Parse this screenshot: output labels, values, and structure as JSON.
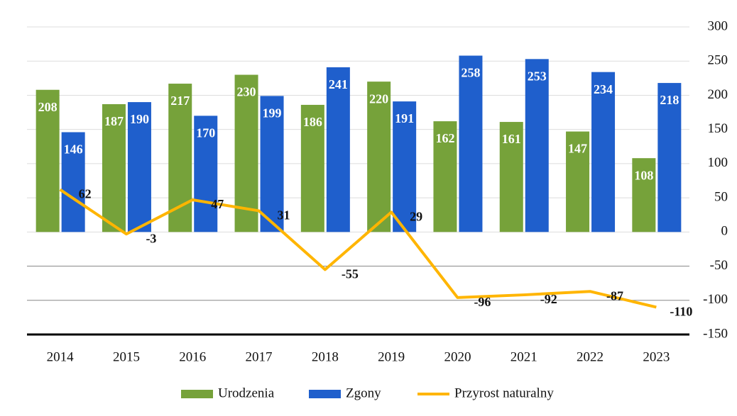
{
  "chart_data": {
    "type": "bar_line",
    "categories": [
      "2014",
      "2015",
      "2016",
      "2017",
      "2018",
      "2019",
      "2020",
      "2021",
      "2022",
      "2023"
    ],
    "series": [
      {
        "name": "Urodzenia",
        "color": "#76a23a",
        "type": "bar",
        "values": [
          208,
          187,
          217,
          230,
          186,
          220,
          162,
          161,
          147,
          108
        ]
      },
      {
        "name": "Zgony",
        "color": "#1f5fcc",
        "type": "bar",
        "values": [
          146,
          190,
          170,
          199,
          241,
          191,
          258,
          253,
          234,
          218
        ]
      },
      {
        "name": "Przyrost naturalny",
        "color": "#ffb500",
        "type": "line",
        "values": [
          62,
          -3,
          47,
          31,
          -55,
          29,
          -96,
          -92,
          -87,
          -110
        ]
      }
    ],
    "ylim": [
      -150,
      300
    ],
    "yticks": [
      300,
      250,
      200,
      150,
      100,
      50,
      0,
      -50,
      -100,
      -150
    ],
    "grid": true,
    "legend": "bottom"
  }
}
